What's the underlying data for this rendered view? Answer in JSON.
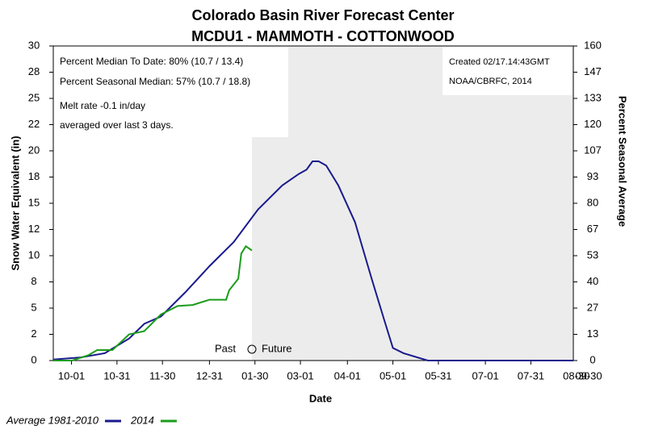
{
  "chart_data": {
    "type": "line",
    "title": "Colorado Basin River Forecast Center",
    "subtitle": "MCDU1 - MAMMOTH - COTTONWOOD",
    "x_label": "Date",
    "y_label": "Snow Water Equivalent (in)",
    "y2_label": "Percent Seasonal Average",
    "annotations": [
      "Percent Median To Date: 80% (10.7 / 13.4)",
      "Percent Seasonal Median: 57% (10.7 / 18.8)",
      "Melt rate -0.1 in/day",
      "averaged over last 3 days."
    ],
    "credits": [
      "Created 02/17.14:43GMT",
      "NOAA/CBRFC, 2014"
    ],
    "past_label": "Past",
    "future_label": "Future",
    "xlim": [
      -12,
      331
    ],
    "xticks": [
      {
        "value": 0,
        "label": "10-01"
      },
      {
        "value": 30,
        "label": "10-31"
      },
      {
        "value": 60,
        "label": "11-30"
      },
      {
        "value": 91,
        "label": "12-31"
      },
      {
        "value": 121,
        "label": "01-30"
      },
      {
        "value": 151,
        "label": "03-01"
      },
      {
        "value": 182,
        "label": "04-01"
      },
      {
        "value": 212,
        "label": "05-01"
      },
      {
        "value": 242,
        "label": "05-31"
      },
      {
        "value": 273,
        "label": "07-01"
      },
      {
        "value": 303,
        "label": "07-31"
      },
      {
        "value": 333,
        "label": "08-30"
      },
      {
        "value": 364,
        "label": "09-30"
      }
    ],
    "ylim": [
      0,
      30
    ],
    "yticks": [
      0,
      {
        "value": 2.5,
        "label": "2"
      },
      5,
      {
        "value": 7.5,
        "label": "8"
      },
      10,
      {
        "value": 12.5,
        "label": "12"
      },
      15,
      {
        "value": 17.5,
        "label": "18"
      },
      20,
      {
        "value": 22.5,
        "label": "22"
      },
      25,
      {
        "value": 27.5,
        "label": "28"
      },
      30
    ],
    "y2lim": [
      0,
      160
    ],
    "y2ticks": [
      0,
      {
        "value": 13.333,
        "label": "13"
      },
      {
        "value": 26.667,
        "label": "27"
      },
      40,
      {
        "value": 53.333,
        "label": "53"
      },
      {
        "value": 66.667,
        "label": "67"
      },
      80,
      {
        "value": 93.333,
        "label": "93"
      },
      {
        "value": 106.667,
        "label": "107"
      },
      120,
      {
        "value": 133.333,
        "label": "133"
      },
      {
        "value": 146.667,
        "label": "147"
      },
      160
    ],
    "series": [
      {
        "name": "Average 1981-2010",
        "color": "#1a1a8c",
        "x": [
          -12,
          6,
          22,
          38,
          48,
          59,
          75,
          91,
          107,
          123,
          139,
          150,
          155,
          159,
          163,
          168,
          176,
          187,
          198,
          206,
          212,
          219,
          235,
          331
        ],
        "values": [
          0.1,
          0.3,
          0.7,
          2.1,
          3.5,
          4.2,
          6.5,
          9.0,
          11.3,
          14.4,
          16.7,
          17.8,
          18.2,
          19.0,
          19.0,
          18.6,
          16.7,
          13.2,
          7.8,
          4.0,
          1.2,
          0.7,
          0,
          0
        ]
      },
      {
        "name": "2014",
        "color": "#1a9c1a",
        "x": [
          -12,
          0.5,
          11,
          17,
          27,
          38,
          48,
          59,
          70,
          80,
          91,
          102,
          104,
          110,
          112,
          115,
          119
        ],
        "values": [
          0,
          0,
          0.5,
          1,
          1,
          2.5,
          2.8,
          4.4,
          5.2,
          5.3,
          5.8,
          5.8,
          6.7,
          7.8,
          10.2,
          10.9,
          10.5
        ]
      }
    ]
  }
}
